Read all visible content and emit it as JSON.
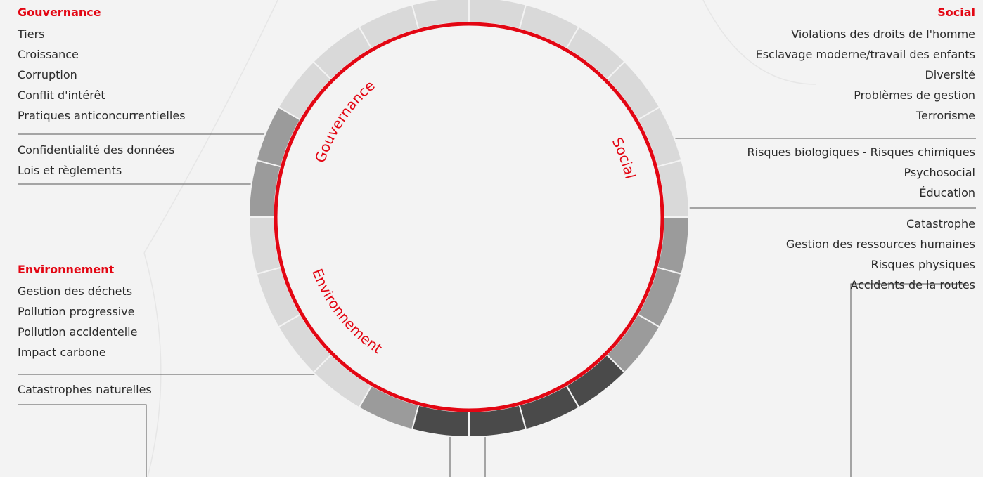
{
  "governance": {
    "heading": "Gouvernance",
    "items": [
      "Tiers",
      "Croissance",
      "Corruption",
      "Conflit d'intérêt",
      "Pratiques anticoncurrentielles"
    ],
    "sub_items": [
      "Confidentialité des données",
      "Lois et règlements"
    ]
  },
  "environment": {
    "heading": "Environnement",
    "items": [
      "Gestion des déchets",
      "Pollution progressive",
      "Pollution accidentelle",
      "Impact carbone"
    ],
    "sub_items": [
      "Catastrophes naturelles"
    ]
  },
  "social": {
    "heading": "Social",
    "items": [
      "Violations des droits de l'homme",
      "Esclavage moderne/travail des enfants",
      "Diversité",
      "Problèmes de gestion",
      "Terrorisme"
    ],
    "sub_items_1": [
      "Risques biologiques - Risques chimiques",
      "Psychosocial",
      "Éducation"
    ],
    "sub_items_2": [
      "Catastrophe",
      "Gestion des ressources humaines",
      "Risques physiques",
      "Accidents de la routes"
    ]
  },
  "wheel": {
    "labels": [
      "Gouvernance",
      "Social",
      "Environnement"
    ],
    "colors": {
      "accent": "#e30613",
      "light": "#d9d9d9",
      "medium": "#9b9b9b",
      "dark": "#4a4a4a",
      "background": "#f3f3f3",
      "line": "#555555"
    }
  }
}
